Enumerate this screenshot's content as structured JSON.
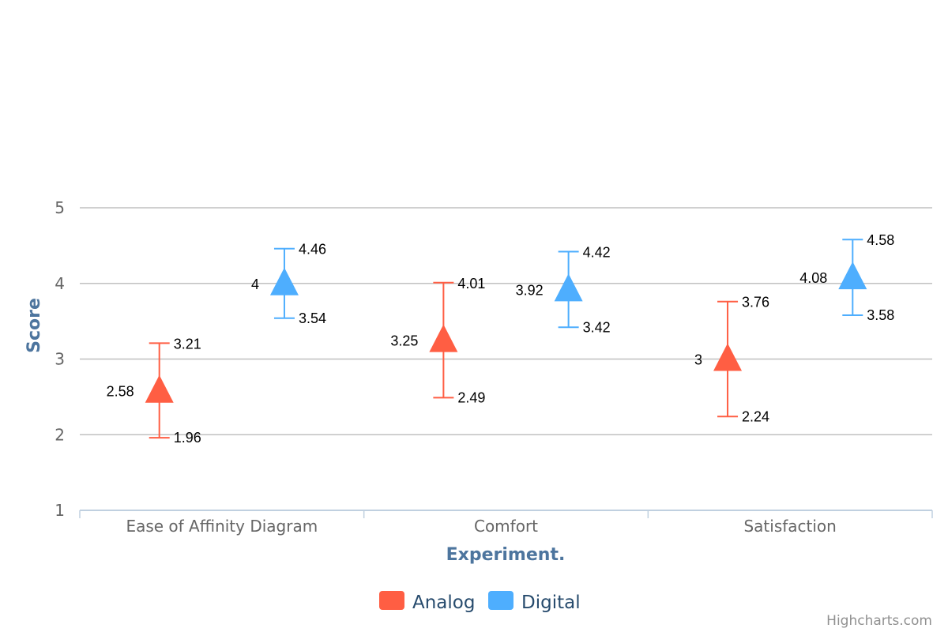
{
  "chart_data": {
    "type": "scatter",
    "title": "",
    "xlabel": "Experiment.",
    "ylabel": "Score",
    "categories": [
      "Ease of Affinity Diagram",
      "Comfort",
      "Satisfaction"
    ],
    "ylim": [
      1,
      5
    ],
    "yticks": [
      "1",
      "2",
      "3",
      "4",
      "5"
    ],
    "grid": true,
    "legend_position": "bottom-center",
    "credits": "Highcharts.com",
    "series": [
      {
        "name": "Analog",
        "color": "#ff5e43",
        "marker": "triangle",
        "values": [
          2.58,
          3.25,
          3
        ],
        "value_labels": [
          "2.58",
          "3.25",
          "3"
        ],
        "error_low": [
          1.96,
          2.49,
          2.24
        ],
        "error_high": [
          3.21,
          4.01,
          3.76
        ],
        "low_labels": [
          "1.96",
          "2.49",
          "2.24"
        ],
        "high_labels": [
          "3.21",
          "4.01",
          "3.76"
        ]
      },
      {
        "name": "Digital",
        "color": "#4eaefe",
        "marker": "triangle",
        "values": [
          4,
          3.92,
          4.08
        ],
        "value_labels": [
          "4",
          "3.92",
          "4.08"
        ],
        "error_low": [
          3.54,
          3.42,
          3.58
        ],
        "error_high": [
          4.46,
          4.42,
          4.58
        ],
        "low_labels": [
          "3.54",
          "3.42",
          "3.58"
        ],
        "high_labels": [
          "4.46",
          "4.42",
          "4.58"
        ]
      }
    ]
  }
}
